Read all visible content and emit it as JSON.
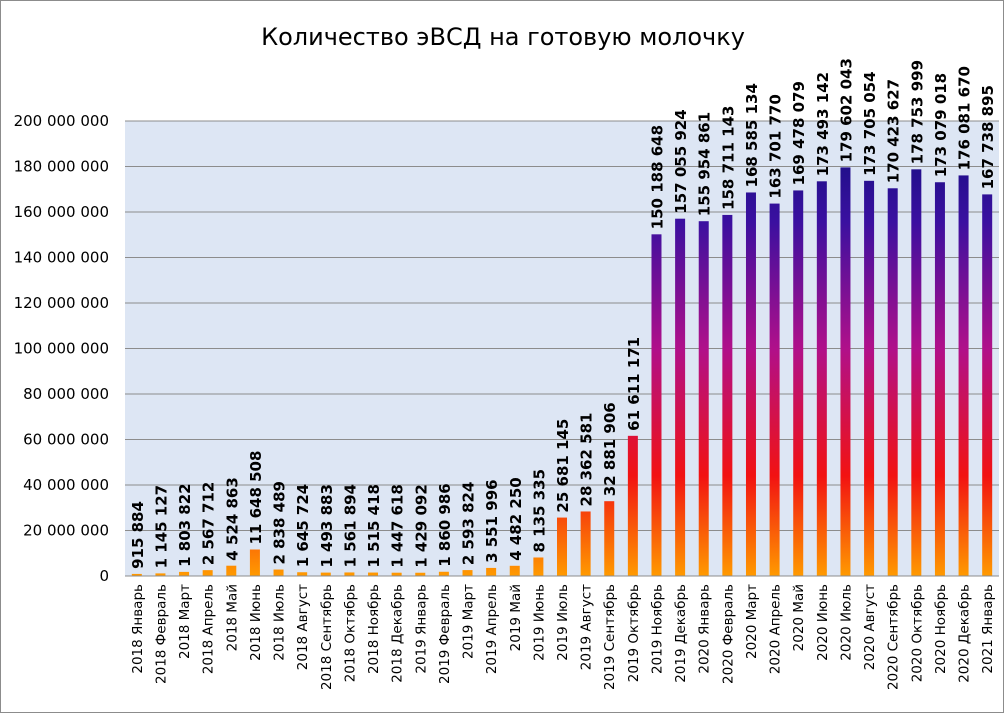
{
  "chart_data": {
    "type": "bar",
    "title": "Количество эВСД на готовую молочку",
    "xlabel": "",
    "ylabel": "",
    "ylim": [
      0,
      200000000
    ],
    "yticks": [
      0,
      20000000,
      40000000,
      60000000,
      80000000,
      100000000,
      120000000,
      140000000,
      160000000,
      180000000,
      200000000
    ],
    "ytick_labels": [
      "0",
      "20 000 000",
      "40 000 000",
      "60 000 000",
      "80 000 000",
      "100 000 000",
      "120 000 000",
      "140 000 000",
      "160 000 000",
      "180 000 000",
      "200 000 000"
    ],
    "grid": true,
    "legend": "none",
    "colors": {
      "plot_bg": "#dde6f4",
      "bar_top": "#0e0e7a",
      "bar_mid": "#b0108a",
      "bar_low": "#f21212",
      "bar_base": "#ff9a00",
      "grid": "#8c8c8c"
    },
    "categories": [
      "2018 Январь",
      "2018 Февраль",
      "2018 Март",
      "2018 Апрель",
      "2018 Май",
      "2018 Июнь",
      "2018 Июль",
      "2018 Август",
      "2018 Сентябрь",
      "2018 Октябрь",
      "2018 Ноябрь",
      "2018 Декабрь",
      "2019 Январь",
      "2019 Февраль",
      "2019 Март",
      "2019 Апрель",
      "2019 Май",
      "2019 Июнь",
      "2019 Июль",
      "2019 Август",
      "2019 Сентябрь",
      "2019 Октябрь",
      "2019 Ноябрь",
      "2019 Декабрь",
      "2020 Январь",
      "2020 Февраль",
      "2020 Март",
      "2020 Апрель",
      "2020 Май",
      "2020 Июнь",
      "2020 Июль",
      "2020 Август",
      "2020 Сентябрь",
      "2020 Октябрь",
      "2020 Ноябрь",
      "2020 Декабрь",
      "2021 Январь"
    ],
    "values": [
      915884,
      1145127,
      1803822,
      2567712,
      4524863,
      11648508,
      2838489,
      1645724,
      1493883,
      1561894,
      1515418,
      1447618,
      1429092,
      1860986,
      2593824,
      3551996,
      4482250,
      8135335,
      25681145,
      28362581,
      32881906,
      61611171,
      150188648,
      157055924,
      155954861,
      158711143,
      168585134,
      163701770,
      169478079,
      173493142,
      179602043,
      173705054,
      170423627,
      178753999,
      173079018,
      176081670,
      167738895
    ],
    "data_labels": [
      "915 884",
      "1 145 127",
      "1 803 822",
      "2 567 712",
      "4 524 863",
      "11 648 508",
      "2 838 489",
      "1 645 724",
      "1 493 883",
      "1 561 894",
      "1 515 418",
      "1 447 618",
      "1 429 092",
      "1 860 986",
      "2 593 824",
      "3 551 996",
      "4 482 250",
      "8 135 335",
      "25 681 145",
      "28 362 581",
      "32 881 906",
      "61 611 171",
      "150 188 648",
      "157 055 924",
      "155 954 861",
      "158 711 143",
      "168 585 134",
      "163 701 770",
      "169 478 079",
      "173 493 142",
      "179 602 043",
      "173 705 054",
      "170 423 627",
      "178 753 999",
      "173 079 018",
      "176 081 670",
      "167 738 895"
    ]
  }
}
